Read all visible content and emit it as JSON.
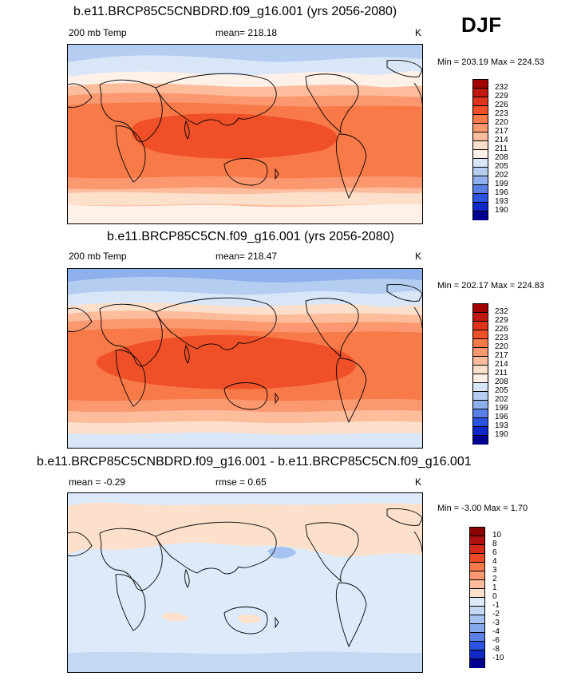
{
  "season": "DJF",
  "panels": [
    {
      "title": "b.e11.BRCP85C5CNBDRD.f09_g16.001 (yrs 2056-2080)",
      "left_label": "200 mb Temp",
      "center_label": "mean= 218.18",
      "units": "K",
      "minmax": "Min = 203.19 Max = 224.53",
      "colorbar": {
        "labels": [
          "232",
          "229",
          "226",
          "223",
          "220",
          "217",
          "214",
          "211",
          "208",
          "205",
          "202",
          "199",
          "196",
          "193",
          "190"
        ],
        "colors": [
          "#a00000",
          "#c0180e",
          "#e0341a",
          "#f05028",
          "#f87a48",
          "#fb9870",
          "#fdbd9c",
          "#fde0cc",
          "#fff0e8",
          "#d8e6f8",
          "#b4cdf0",
          "#8eb0ec",
          "#5a80e8",
          "#2c52e0",
          "#1028c8",
          "#000090"
        ]
      }
    },
    {
      "title": "b.e11.BRCP85C5CN.f09_g16.001 (yrs 2056-2080)",
      "left_label": "200 mb Temp",
      "center_label": "mean= 218.47",
      "units": "K",
      "minmax": "Min = 202.17 Max = 224.83",
      "colorbar": {
        "labels": [
          "232",
          "229",
          "226",
          "223",
          "220",
          "217",
          "214",
          "211",
          "208",
          "205",
          "202",
          "199",
          "196",
          "193",
          "190"
        ],
        "colors": [
          "#a00000",
          "#c0180e",
          "#e0341a",
          "#f05028",
          "#f87a48",
          "#fb9870",
          "#fdbd9c",
          "#fde0cc",
          "#fff0e8",
          "#d8e6f8",
          "#b4cdf0",
          "#8eb0ec",
          "#5a80e8",
          "#2c52e0",
          "#1028c8",
          "#000090"
        ]
      }
    },
    {
      "title": "b.e11.BRCP85C5CNBDRD.f09_g16.001 - b.e11.BRCP85C5CN.f09_g16.001",
      "left_label": "mean =  -0.29",
      "center_label": "rmse =   0.65",
      "units": "K",
      "minmax": "Min =  -3.00 Max =   1.70",
      "colorbar": {
        "labels": [
          "10",
          "8",
          "6",
          "4",
          "3",
          "2",
          "1",
          "0",
          "-1",
          "-2",
          "-3",
          "-4",
          "-6",
          "-8",
          "-10"
        ],
        "colors": [
          "#8b0000",
          "#b01010",
          "#d42a1a",
          "#ec4a26",
          "#f87a48",
          "#fb9870",
          "#fdbd9c",
          "#fde0cc",
          "#ddeafa",
          "#c4d8f4",
          "#a6c2f0",
          "#86a8ec",
          "#5a80e8",
          "#2c52e0",
          "#1028c8",
          "#000090"
        ]
      }
    }
  ],
  "colors": {
    "background": "#ffffff",
    "coastline": "#000000"
  }
}
